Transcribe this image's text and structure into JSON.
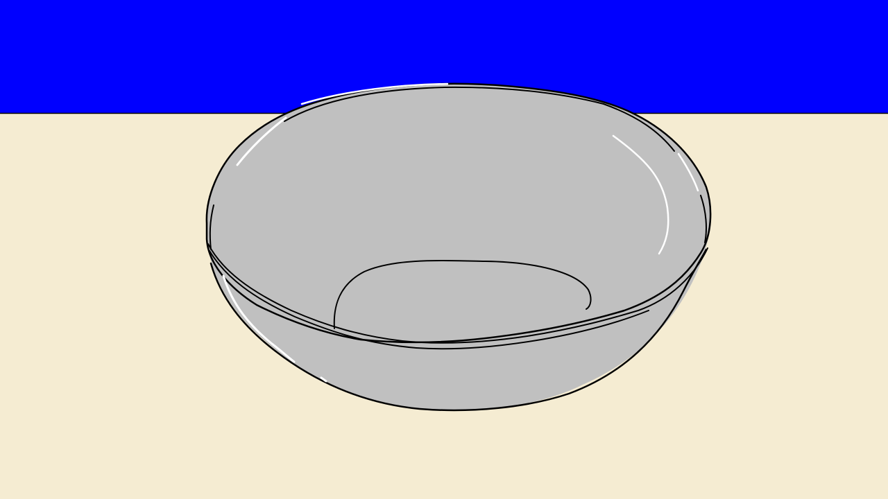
{
  "scene": {
    "subject": "bowl-icon",
    "colors": {
      "sky": "#0000FF",
      "table": "#F5ECD2",
      "bowl": "#C0C0C0",
      "outline": "#000000",
      "highlight": "#FFFFFF"
    }
  }
}
